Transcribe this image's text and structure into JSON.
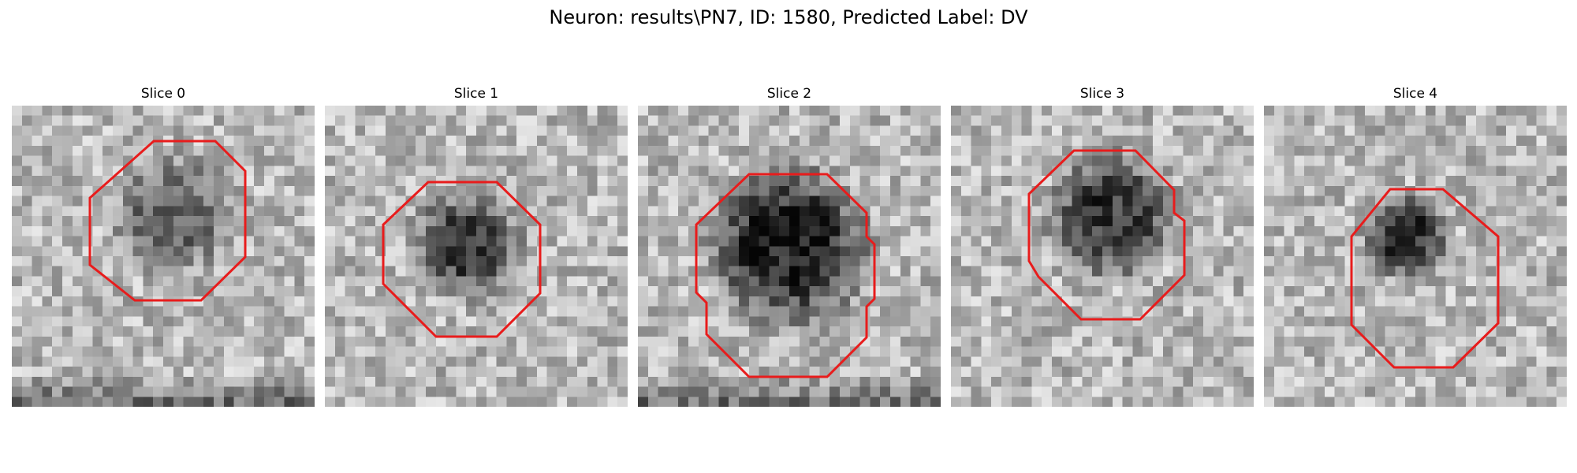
{
  "figure": {
    "title": "Neuron: results\\PN7, ID: 1580, Predicted Label: DV"
  },
  "colors": {
    "contour": "#e81c1c",
    "background": "#ffffff",
    "text": "#000000"
  },
  "panels": [
    {
      "title": "Slice 0",
      "tone": "dark-blob-light-surround",
      "blob_darkness": 0.55,
      "contour_shape": "octagon"
    },
    {
      "title": "Slice 1",
      "tone": "dark-blob-light-surround",
      "blob_darkness": 0.75,
      "contour_shape": "octagon"
    },
    {
      "title": "Slice 2",
      "tone": "very-dark-blob",
      "blob_darkness": 0.95,
      "contour_shape": "octagon"
    },
    {
      "title": "Slice 3",
      "tone": "dark-blob-light-surround",
      "blob_darkness": 0.8,
      "contour_shape": "octagon"
    },
    {
      "title": "Slice 4",
      "tone": "small-dark-blob",
      "blob_darkness": 0.85,
      "contour_shape": "octagon"
    }
  ]
}
